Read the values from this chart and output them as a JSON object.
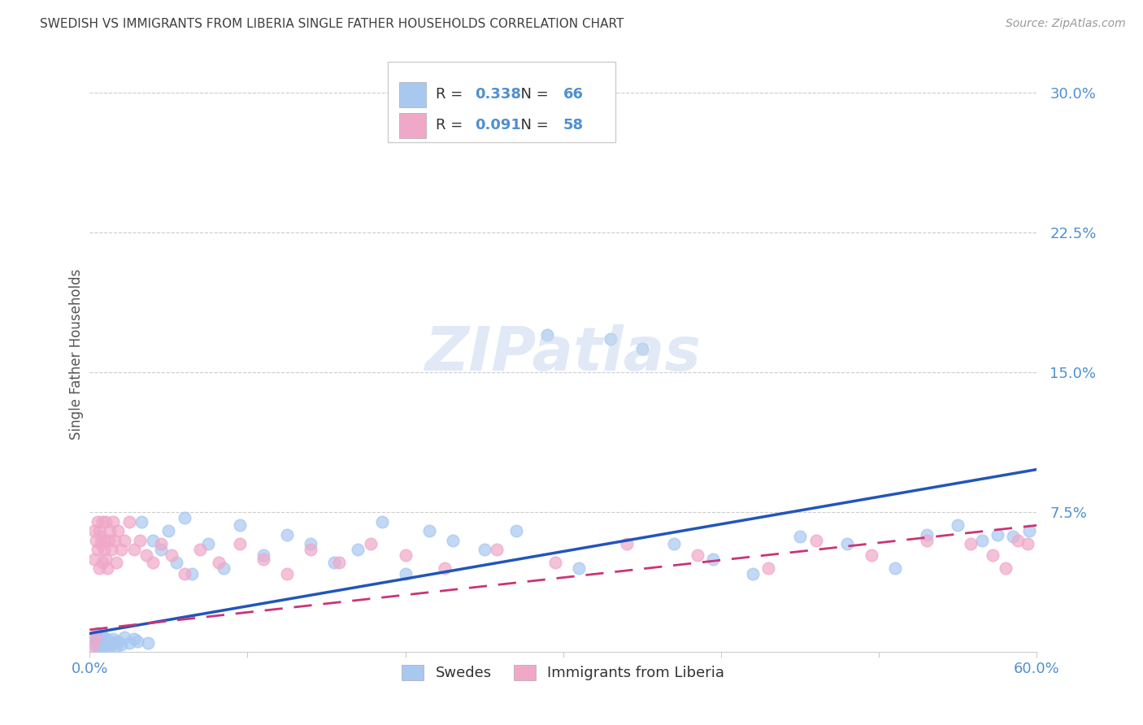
{
  "title": "SWEDISH VS IMMIGRANTS FROM LIBERIA SINGLE FATHER HOUSEHOLDS CORRELATION CHART",
  "source": "Source: ZipAtlas.com",
  "ylabel": "Single Father Households",
  "xlim": [
    0.0,
    0.6
  ],
  "ylim": [
    0.0,
    0.32
  ],
  "xtick_vals": [
    0.0,
    0.1,
    0.2,
    0.3,
    0.4,
    0.5,
    0.6
  ],
  "xtick_labels": [
    "0.0%",
    "",
    "",
    "",
    "",
    "",
    "60.0%"
  ],
  "ytick_vals": [
    0.0,
    0.075,
    0.15,
    0.225,
    0.3
  ],
  "ytick_labels": [
    "",
    "7.5%",
    "15.0%",
    "22.5%",
    "30.0%"
  ],
  "swedes_color": "#a8c8f0",
  "liberia_color": "#f0a8c8",
  "swedes_line_color": "#2255bb",
  "liberia_line_color": "#cc3377",
  "R_swedes": 0.338,
  "N_swedes": 66,
  "R_liberia": 0.091,
  "N_liberia": 58,
  "grid_color": "#cccccc",
  "background_color": "#ffffff",
  "title_color": "#404040",
  "value_color": "#5090d0",
  "swedes_line_start_y": 0.01,
  "swedes_line_end_y": 0.098,
  "liberia_line_start_y": 0.012,
  "liberia_line_end_y": 0.068,
  "swedes_x": [
    0.002,
    0.003,
    0.004,
    0.005,
    0.005,
    0.006,
    0.006,
    0.007,
    0.007,
    0.008,
    0.008,
    0.009,
    0.009,
    0.01,
    0.01,
    0.011,
    0.012,
    0.013,
    0.014,
    0.015,
    0.016,
    0.017,
    0.018,
    0.02,
    0.022,
    0.025,
    0.028,
    0.03,
    0.033,
    0.037,
    0.04,
    0.045,
    0.05,
    0.055,
    0.06,
    0.065,
    0.075,
    0.085,
    0.095,
    0.11,
    0.125,
    0.14,
    0.155,
    0.17,
    0.185,
    0.2,
    0.215,
    0.23,
    0.25,
    0.27,
    0.29,
    0.31,
    0.33,
    0.35,
    0.37,
    0.395,
    0.42,
    0.45,
    0.48,
    0.51,
    0.53,
    0.55,
    0.565,
    0.575,
    0.585,
    0.595
  ],
  "swedes_y": [
    0.008,
    0.004,
    0.006,
    0.003,
    0.01,
    0.005,
    0.007,
    0.004,
    0.009,
    0.003,
    0.006,
    0.005,
    0.008,
    0.004,
    0.007,
    0.003,
    0.005,
    0.006,
    0.004,
    0.007,
    0.005,
    0.003,
    0.006,
    0.004,
    0.008,
    0.005,
    0.007,
    0.006,
    0.07,
    0.005,
    0.06,
    0.055,
    0.065,
    0.048,
    0.072,
    0.042,
    0.058,
    0.045,
    0.068,
    0.052,
    0.063,
    0.058,
    0.048,
    0.055,
    0.07,
    0.042,
    0.065,
    0.06,
    0.055,
    0.065,
    0.17,
    0.045,
    0.168,
    0.163,
    0.058,
    0.05,
    0.042,
    0.062,
    0.058,
    0.045,
    0.063,
    0.068,
    0.06,
    0.063,
    0.062,
    0.065
  ],
  "liberia_x": [
    0.002,
    0.003,
    0.003,
    0.004,
    0.004,
    0.005,
    0.005,
    0.006,
    0.006,
    0.007,
    0.007,
    0.008,
    0.008,
    0.009,
    0.009,
    0.01,
    0.01,
    0.011,
    0.012,
    0.013,
    0.014,
    0.015,
    0.016,
    0.017,
    0.018,
    0.02,
    0.022,
    0.025,
    0.028,
    0.032,
    0.036,
    0.04,
    0.045,
    0.052,
    0.06,
    0.07,
    0.082,
    0.095,
    0.11,
    0.125,
    0.14,
    0.158,
    0.178,
    0.2,
    0.225,
    0.258,
    0.295,
    0.34,
    0.385,
    0.43,
    0.46,
    0.495,
    0.53,
    0.558,
    0.572,
    0.58,
    0.588,
    0.594
  ],
  "liberia_y": [
    0.003,
    0.05,
    0.065,
    0.06,
    0.008,
    0.055,
    0.07,
    0.045,
    0.065,
    0.058,
    0.062,
    0.048,
    0.07,
    0.055,
    0.06,
    0.05,
    0.07,
    0.045,
    0.06,
    0.065,
    0.055,
    0.07,
    0.06,
    0.048,
    0.065,
    0.055,
    0.06,
    0.07,
    0.055,
    0.06,
    0.052,
    0.048,
    0.058,
    0.052,
    0.042,
    0.055,
    0.048,
    0.058,
    0.05,
    0.042,
    0.055,
    0.048,
    0.058,
    0.052,
    0.045,
    0.055,
    0.048,
    0.058,
    0.052,
    0.045,
    0.06,
    0.052,
    0.06,
    0.058,
    0.052,
    0.045,
    0.06,
    0.058
  ]
}
